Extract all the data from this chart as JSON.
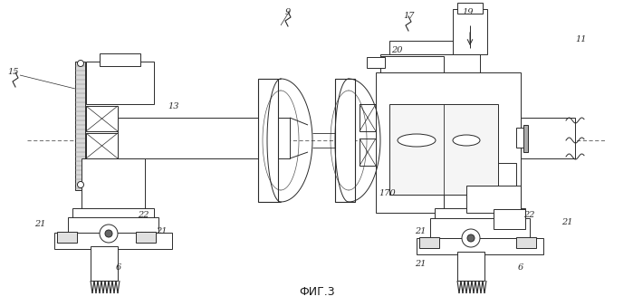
{
  "title": "ФИГ.3",
  "bg_color": "#ffffff",
  "lc": "#2a2a2a",
  "lw": 0.7,
  "figsize": [
    6.99,
    3.38
  ],
  "dpi": 100
}
